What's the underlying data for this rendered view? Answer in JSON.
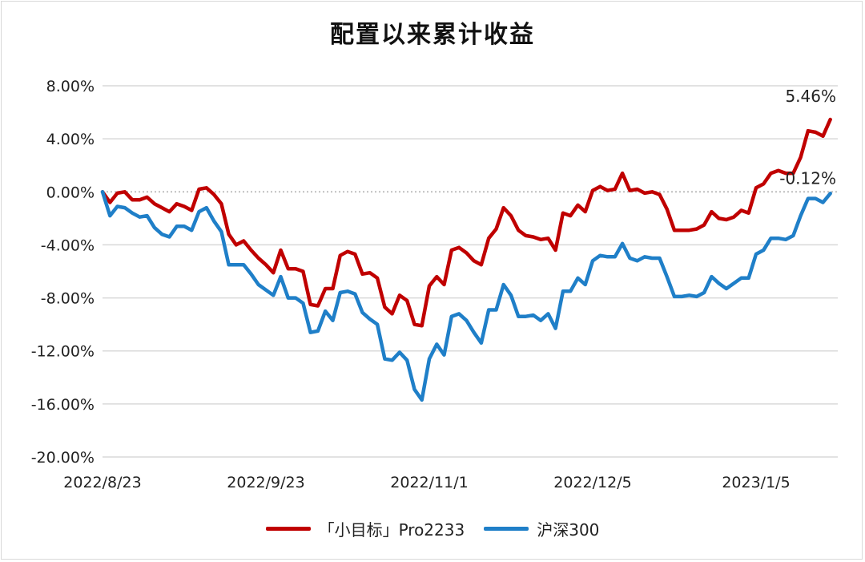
{
  "colors": {
    "series1": "#c00000",
    "series2": "#1f7fc8",
    "grid": "#d9d9d9",
    "zero": "#bfbfbf"
  },
  "chart_data": {
    "type": "line",
    "title": "配置以来累计收益",
    "xlabel": "",
    "ylabel": "",
    "ylim": [
      -20,
      8
    ],
    "yticks": [
      8,
      4,
      0,
      -4,
      -8,
      -12,
      -16,
      -20
    ],
    "ytick_labels": [
      "8.00%",
      "4.00%",
      "0.00%",
      "-4.00%",
      "-8.00%",
      "-12.00%",
      "-16.00%",
      "-20.00%"
    ],
    "n_points": 100,
    "xtick_positions": [
      0,
      22,
      44,
      66,
      88
    ],
    "xtick_labels": [
      "2022/8/23",
      "2022/9/23",
      "2022/11/1",
      "2022/12/5",
      "2023/1/5"
    ],
    "grid": "horizontal",
    "legend_position": "bottom",
    "annotations": [
      {
        "series": 0,
        "text": "5.46%"
      },
      {
        "series": 1,
        "text": "-0.12%"
      }
    ],
    "series": [
      {
        "name": "「小目标」Pro2233",
        "color": "#c00000",
        "values": [
          0.0,
          -0.8,
          -0.1,
          0.0,
          -0.6,
          -0.6,
          -0.4,
          -0.9,
          -1.2,
          -1.5,
          -0.9,
          -1.1,
          -1.4,
          0.2,
          0.3,
          -0.2,
          -0.9,
          -3.2,
          -4.0,
          -3.7,
          -4.4,
          -5.0,
          -5.5,
          -6.1,
          -4.4,
          -5.8,
          -5.8,
          -6.0,
          -8.5,
          -8.6,
          -7.3,
          -7.3,
          -4.8,
          -4.5,
          -4.7,
          -6.2,
          -6.1,
          -6.5,
          -8.7,
          -9.2,
          -7.8,
          -8.2,
          -10.0,
          -10.1,
          -7.1,
          -6.4,
          -7.0,
          -4.4,
          -4.2,
          -4.6,
          -5.2,
          -5.5,
          -3.5,
          -2.8,
          -1.2,
          -1.8,
          -2.9,
          -3.3,
          -3.4,
          -3.6,
          -3.5,
          -4.4,
          -1.6,
          -1.8,
          -1.0,
          -1.5,
          0.1,
          0.4,
          0.1,
          0.2,
          1.4,
          0.1,
          0.2,
          -0.1,
          0.0,
          -0.2,
          -1.3,
          -2.9,
          -2.9,
          -2.9,
          -2.8,
          -2.5,
          -1.5,
          -2.0,
          -2.1,
          -1.9,
          -1.4,
          -1.6,
          0.3,
          0.6,
          1.4,
          1.6,
          1.4,
          1.4,
          2.6,
          4.6,
          4.5,
          4.2,
          5.46
        ]
      },
      {
        "name": "沪深300",
        "color": "#1f7fc8",
        "values": [
          0.0,
          -1.8,
          -1.1,
          -1.2,
          -1.6,
          -1.9,
          -1.8,
          -2.7,
          -3.2,
          -3.4,
          -2.6,
          -2.6,
          -2.9,
          -1.5,
          -1.2,
          -2.2,
          -3.0,
          -5.5,
          -5.5,
          -5.5,
          -6.2,
          -7.0,
          -7.4,
          -7.8,
          -6.4,
          -8.0,
          -8.0,
          -8.4,
          -10.6,
          -10.5,
          -9.0,
          -9.7,
          -7.6,
          -7.5,
          -7.7,
          -9.1,
          -9.6,
          -10.0,
          -12.6,
          -12.7,
          -12.1,
          -12.7,
          -14.9,
          -15.7,
          -12.6,
          -11.5,
          -12.3,
          -9.4,
          -9.2,
          -9.7,
          -10.6,
          -11.4,
          -8.9,
          -8.9,
          -7.0,
          -7.8,
          -9.4,
          -9.4,
          -9.3,
          -9.7,
          -9.2,
          -10.3,
          -7.5,
          -7.5,
          -6.5,
          -7.0,
          -5.2,
          -4.8,
          -4.9,
          -4.9,
          -3.9,
          -5.0,
          -5.2,
          -4.9,
          -5.0,
          -5.0,
          -6.4,
          -7.9,
          -7.9,
          -7.8,
          -7.9,
          -7.6,
          -6.4,
          -6.9,
          -7.3,
          -6.9,
          -6.5,
          -6.5,
          -4.7,
          -4.4,
          -3.5,
          -3.5,
          -3.6,
          -3.3,
          -1.8,
          -0.5,
          -0.5,
          -0.8,
          -0.12
        ]
      }
    ]
  }
}
